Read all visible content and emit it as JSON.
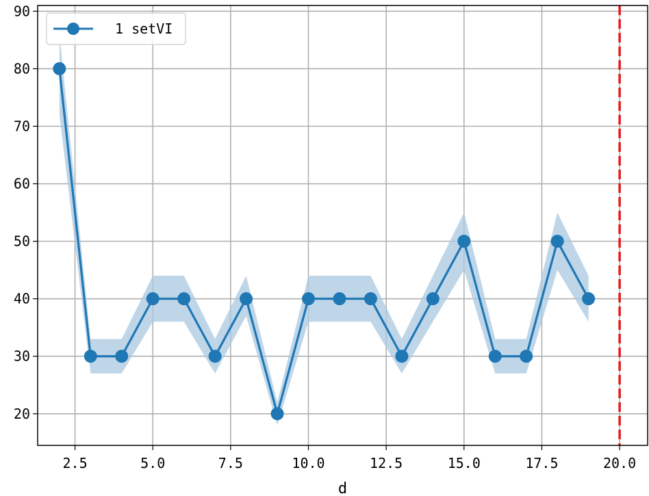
{
  "chart_data": {
    "type": "line",
    "title": "",
    "xlabel": "d",
    "ylabel": "",
    "xlim": [
      1.3,
      20.9
    ],
    "ylim": [
      14.5,
      91
    ],
    "x_ticks": [
      2.5,
      5.0,
      7.5,
      10.0,
      12.5,
      15.0,
      17.5,
      20.0
    ],
    "x_tick_labels": [
      "2.5",
      "5.0",
      "7.5",
      "10.0",
      "12.5",
      "15.0",
      "17.5",
      "20.0"
    ],
    "y_ticks": [
      20,
      30,
      40,
      50,
      60,
      70,
      80,
      90
    ],
    "y_tick_labels": [
      "20",
      "30",
      "40",
      "50",
      "60",
      "70",
      "80",
      "90"
    ],
    "grid": true,
    "legend_position": "top-left",
    "series": [
      {
        "name": "1 setVI",
        "color": "#1f77b4",
        "band_color": "#aac8e1",
        "x": [
          2,
          3,
          4,
          5,
          6,
          7,
          8,
          9,
          10,
          11,
          12,
          13,
          14,
          15,
          16,
          17,
          18,
          19
        ],
        "values": [
          80,
          30,
          30,
          40,
          40,
          30,
          40,
          20,
          40,
          40,
          40,
          30,
          40,
          50,
          30,
          30,
          50,
          40
        ],
        "band_lower": [
          72,
          27,
          27,
          36,
          36,
          27,
          37,
          18,
          36,
          36,
          36,
          27,
          36,
          45,
          27,
          27,
          45,
          36
        ],
        "band_upper": [
          86,
          33,
          33,
          44,
          44,
          33,
          44,
          22,
          44,
          44,
          44,
          33,
          44,
          55,
          33,
          33,
          55,
          44
        ]
      }
    ],
    "reference_line": {
      "x": 20.0,
      "color": "#e31a1c",
      "style": "dashed"
    }
  }
}
